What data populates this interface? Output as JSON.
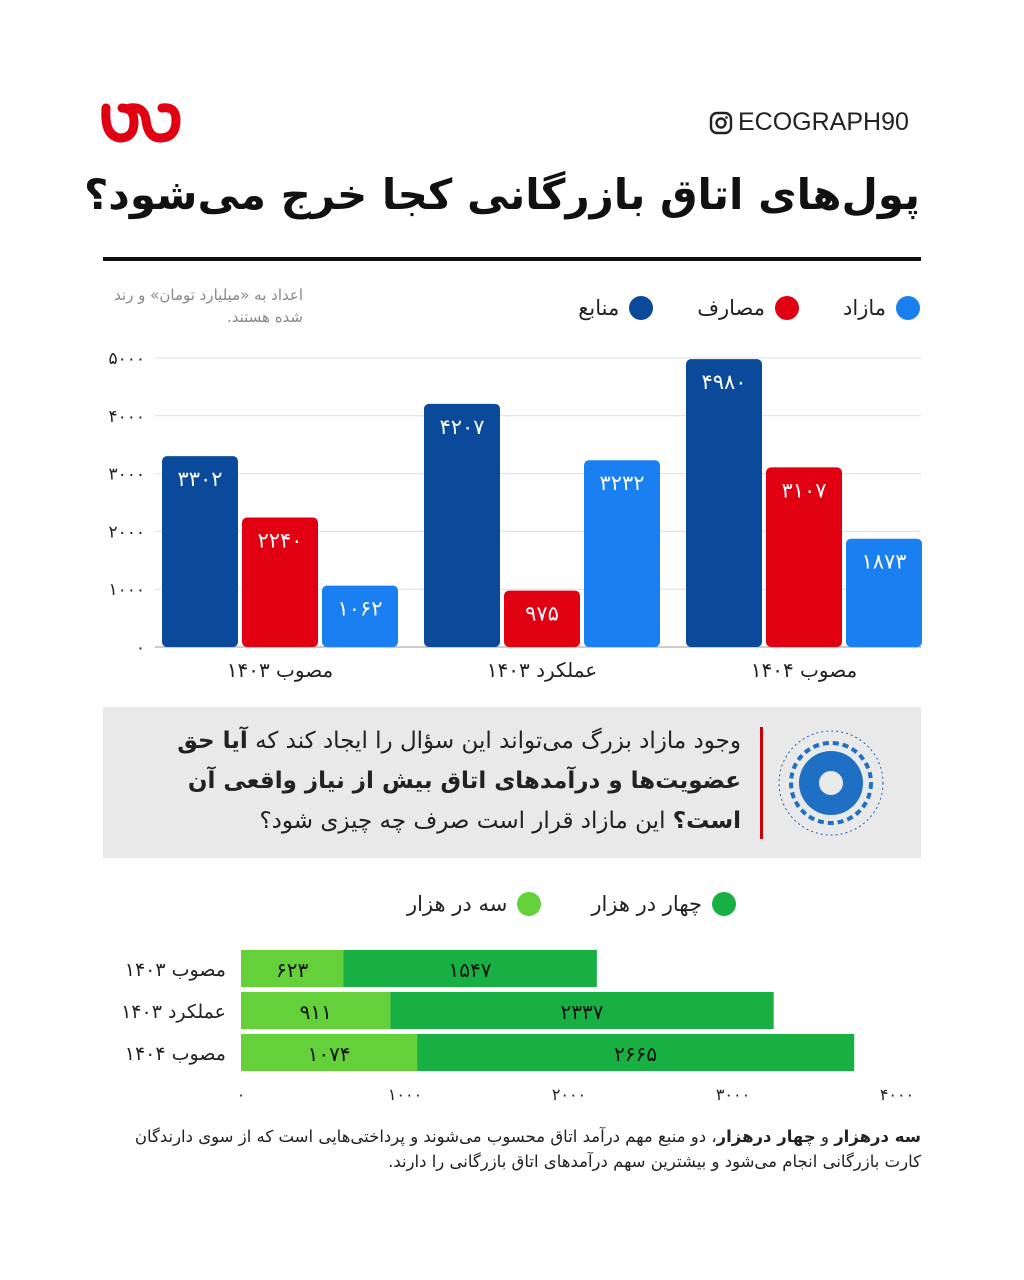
{
  "header": {
    "handle": "ECOGRAPH90",
    "title": "پول‌های اتاق بازرگانی کجا خرج می‌شود؟",
    "logo_text": "اکو"
  },
  "chart_note": "اعداد به «میلیارد تومان» و رند شده هستند.",
  "colors": {
    "sources": "#0b4a9a",
    "expenses": "#e00012",
    "surplus": "#1a7ff0",
    "three": "#64d13a",
    "four": "#19b043",
    "accent": "#e00012"
  },
  "chart_data": [
    {
      "type": "bar",
      "categories": [
        "مصوب ۱۴۰۳",
        "عملکرد ۱۴۰۳",
        "مصوب ۱۴۰۴"
      ],
      "series": [
        {
          "name": "منابع",
          "values": [
            3302,
            4207,
            4980
          ]
        },
        {
          "name": "مصارف",
          "values": [
            2240,
            975,
            3107
          ]
        },
        {
          "name": "مازاد",
          "values": [
            1062,
            3232,
            1873
          ]
        }
      ],
      "ylim": [
        0,
        5000
      ],
      "yticks": [
        0,
        1000,
        2000,
        3000,
        4000,
        5000
      ],
      "grid": true,
      "legend": "top"
    },
    {
      "type": "bar",
      "orientation": "horizontal",
      "stacked": true,
      "categories": [
        "مصوب ۱۴۰۳",
        "عملکرد ۱۴۰۳",
        "مصوب ۱۴۰۴"
      ],
      "series": [
        {
          "name": "سه در هزار",
          "values": [
            623,
            911,
            1074
          ]
        },
        {
          "name": "چهار در هزار",
          "values": [
            1547,
            2337,
            2665
          ]
        }
      ],
      "xlim": [
        0,
        4000
      ],
      "xticks": [
        0,
        1000,
        2000,
        3000,
        4000
      ],
      "grid": false,
      "legend": "top"
    }
  ],
  "callout": {
    "text1": "وجود مازاد بزرگ می‌تواند این سؤال را ایجاد کند که ",
    "bold": "آیا حق عضویت‌ها و درآمدهای اتاق بیش از نیاز واقعی آن است؟",
    "text2": " این مازاد قرار است صرف چه چیزی شود؟"
  },
  "footer": {
    "bold1": "سه درهزار",
    "and": " و ",
    "bold2": "چهار درهزار",
    "text": "، دو منبع مهم درآمد اتاق محسوب می‌شوند و پرداختی‌هایی است که از سوی دارندگان کارت بازرگانی انجام می‌شود و بیشترین سهم درآمدهای اتاق بازرگانی را دارند."
  }
}
